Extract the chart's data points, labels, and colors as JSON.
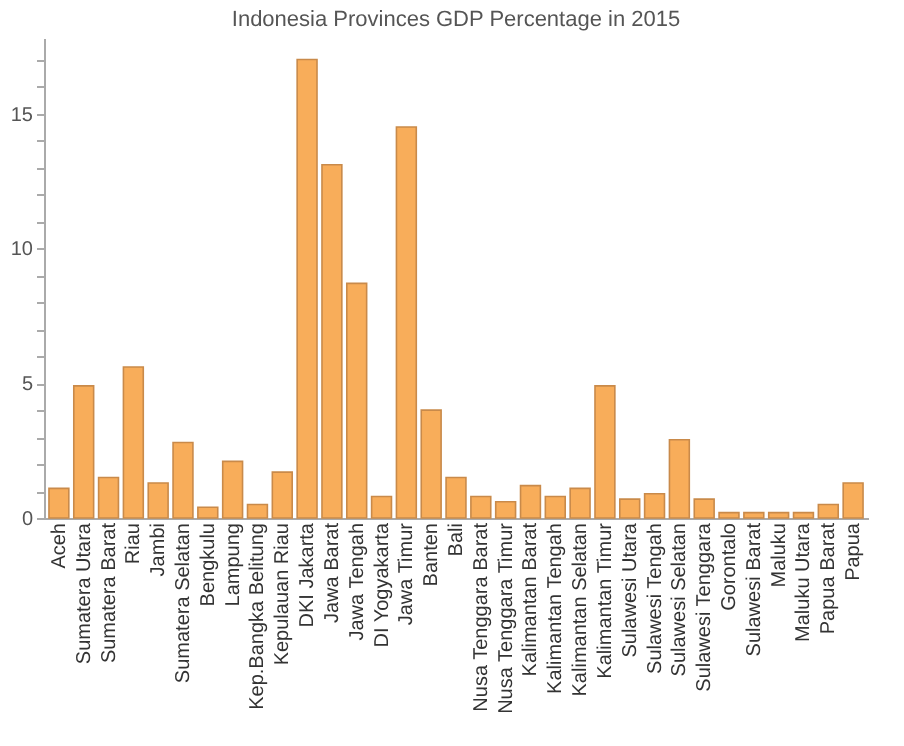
{
  "chart_data": {
    "type": "bar",
    "title": "Indonesia Provinces GDP Percentage in 2015",
    "categories": [
      "Aceh",
      "Sumatera Utara",
      "Sumatera Barat",
      "Riau",
      "Jambi",
      "Sumatera Selatan",
      "Bengkulu",
      "Lampung",
      "Kep.Bangka Belitung",
      "Kepulauan Riau",
      "DKI Jakarta",
      "Jawa Barat",
      "Jawa Tengah",
      "DI Yogyakarta",
      "Jawa Timur",
      "Banten",
      "Bali",
      "Nusa Tenggara Barat",
      "Nusa Tenggara Timur",
      "Kalimantan Barat",
      "Kalimantan Tengah",
      "Kalimantan Selatan",
      "Kalimantan Timur",
      "Sulawesi Utara",
      "Sulawesi Tengah",
      "Sulawesi Selatan",
      "Sulawesi Tenggara",
      "Gorontalo",
      "Sulawesi Barat",
      "Maluku",
      "Maluku Utara",
      "Papua Barat",
      "Papua"
    ],
    "values": [
      1.1,
      4.9,
      1.5,
      5.6,
      1.3,
      2.8,
      0.4,
      2.1,
      0.5,
      1.7,
      17.0,
      13.1,
      8.7,
      0.8,
      14.5,
      4.0,
      1.5,
      0.8,
      0.6,
      1.2,
      0.8,
      1.1,
      4.9,
      0.7,
      0.9,
      2.9,
      0.7,
      0.2,
      0.2,
      0.2,
      0.2,
      0.5,
      1.3
    ],
    "color": "#f8ad5a",
    "ylim": [
      0,
      17.8
    ],
    "yticks": [
      0,
      {
        "value": 1,
        "label": null
      },
      {
        "value": 2,
        "label": null
      },
      {
        "value": 3,
        "label": null
      },
      {
        "value": 4,
        "label": null
      },
      5,
      {
        "value": 6,
        "label": null
      },
      {
        "value": 7,
        "label": null
      },
      {
        "value": 8,
        "label": null
      },
      {
        "value": 9,
        "label": null
      },
      10,
      {
        "value": 11,
        "label": null
      },
      {
        "value": 12,
        "label": null
      },
      {
        "value": 13,
        "label": null
      },
      {
        "value": 14,
        "label": null
      },
      15,
      {
        "value": 16,
        "label": null
      },
      {
        "value": 17,
        "label": null
      }
    ],
    "grid": false
  }
}
